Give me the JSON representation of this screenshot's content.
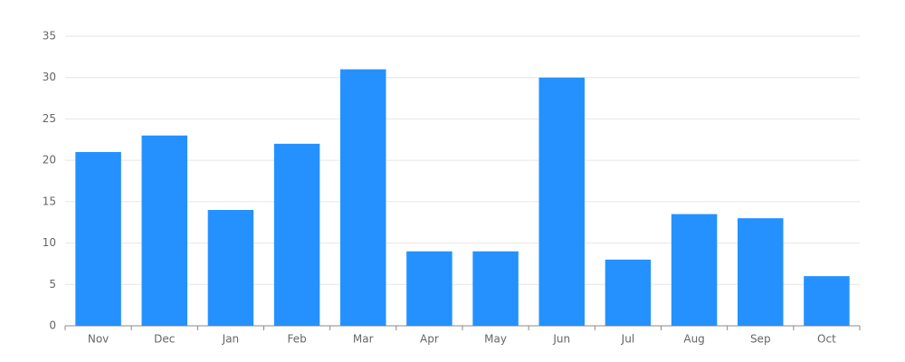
{
  "chart_data": {
    "type": "bar",
    "categories": [
      "Nov",
      "Dec",
      "Jan",
      "Feb",
      "Mar",
      "Apr",
      "May",
      "Jun",
      "Jul",
      "Aug",
      "Sep",
      "Oct"
    ],
    "values": [
      21,
      23,
      14,
      22,
      31,
      9,
      9,
      30,
      8,
      13.5,
      13,
      6
    ],
    "color": "#2491ff",
    "ylim": [
      0,
      35
    ],
    "yticks": [
      0,
      5,
      10,
      15,
      20,
      25,
      30,
      35
    ],
    "grid": true
  }
}
